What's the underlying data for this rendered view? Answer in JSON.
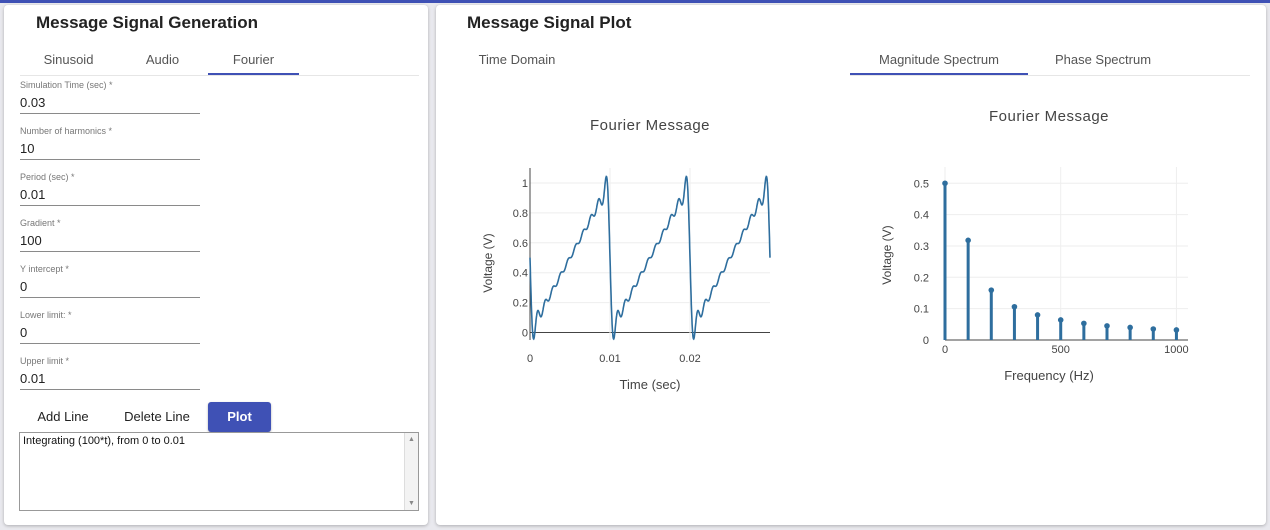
{
  "left_panel": {
    "title": "Message Signal Generation",
    "tabs": [
      {
        "label": "Sinusoid",
        "active": false
      },
      {
        "label": "Audio",
        "active": false
      },
      {
        "label": "Fourier",
        "active": true
      }
    ],
    "fields": [
      {
        "label": "Simulation Time (sec) *",
        "value": "0.03"
      },
      {
        "label": "Number of harmonics *",
        "value": "10"
      },
      {
        "label": "Period (sec) *",
        "value": "0.01"
      },
      {
        "label": "Gradient *",
        "value": "100"
      },
      {
        "label": "Y intercept *",
        "value": "0"
      },
      {
        "label": "Lower limit: *",
        "value": "0"
      },
      {
        "label": "Upper limit *",
        "value": "0.01"
      }
    ],
    "buttons": {
      "add_line": "Add Line",
      "delete_line": "Delete Line",
      "plot": "Plot"
    },
    "log_text": "Integrating (100*t), from 0 to 0.01"
  },
  "right_panel": {
    "title": "Message Signal Plot",
    "time_tab": "Time Domain",
    "spectrum_tabs": [
      {
        "label": "Magnitude Spectrum",
        "active": true
      },
      {
        "label": "Phase Spectrum",
        "active": false
      }
    ]
  },
  "colors": {
    "accent": "#3f51b5",
    "trace": "#2e6e9e"
  },
  "chart_data": [
    {
      "type": "line",
      "title": "Fourier Message",
      "xlabel": "Time (sec)",
      "ylabel": "Voltage (V)",
      "xlim": [
        0,
        0.03
      ],
      "ylim": [
        -0.05,
        1.1
      ],
      "xticks": [
        0,
        0.01,
        0.02
      ],
      "xtick_labels": [
        "0",
        "0.01",
        "0.02"
      ],
      "yticks": [
        0,
        0.2,
        0.4,
        0.6,
        0.8,
        1
      ],
      "ytick_labels": [
        "0",
        "0.2",
        "0.4",
        "0.6",
        "0.8",
        "1"
      ],
      "series": [
        {
          "period": 0.01,
          "gradient": 100,
          "intercept": 0,
          "harmonics": 10,
          "duration": 0.03
        }
      ]
    },
    {
      "type": "bar",
      "title": "Fourier Message",
      "xlabel": "Frequency (Hz)",
      "ylabel": "Voltage (V)",
      "xlim": [
        0,
        1050
      ],
      "ylim": [
        0,
        0.52
      ],
      "xticks": [
        0,
        500,
        1000
      ],
      "xtick_labels": [
        "0",
        "500",
        "1000"
      ],
      "yticks": [
        0,
        0.1,
        0.2,
        0.3,
        0.4,
        0.5
      ],
      "ytick_labels": [
        "0",
        "0.1",
        "0.2",
        "0.3",
        "0.4",
        "0.5"
      ],
      "x": [
        0,
        100,
        200,
        300,
        400,
        500,
        600,
        700,
        800,
        900,
        1000
      ],
      "values": [
        0.5,
        0.318,
        0.159,
        0.106,
        0.08,
        0.064,
        0.053,
        0.045,
        0.04,
        0.035,
        0.032
      ]
    }
  ]
}
